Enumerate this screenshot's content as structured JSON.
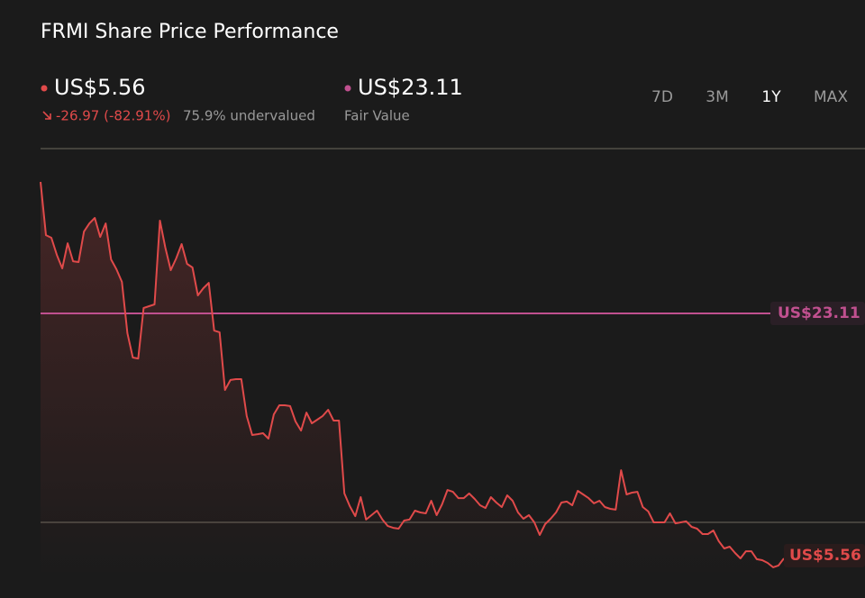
{
  "header": {
    "title": "FRMI Share Price Performance",
    "change": "-26.97 (-82.91%)",
    "valuation": "75.9% undervalued",
    "fair_value_caption": "Fair Value",
    "ranges": [
      "7D",
      "3M",
      "1Y",
      "MAX"
    ],
    "active_range": "1Y"
  },
  "chart_data": {
    "type": "line",
    "color": "#e04a4a",
    "values": [
      32.53,
      28.72,
      28.53,
      27.3,
      26.34,
      28.14,
      26.85,
      26.79,
      28.98,
      29.56,
      29.95,
      28.59,
      29.56,
      26.98,
      26.27,
      25.37,
      21.69,
      19.95,
      19.88,
      23.5,
      23.63,
      23.76,
      29.76,
      27.82,
      26.21,
      27.05,
      28.08,
      26.66,
      26.4,
      24.4,
      24.92,
      25.3,
      21.88,
      21.76,
      17.63,
      18.34,
      18.4,
      18.4,
      15.76,
      14.4,
      14.46,
      14.53,
      14.14,
      15.88,
      16.53,
      16.53,
      16.47,
      15.37,
      14.72,
      16.01,
      15.24,
      15.5,
      15.76,
      16.21,
      15.43,
      15.43,
      10.21,
      9.3,
      8.59,
      9.95,
      8.34,
      8.66,
      8.98,
      8.34,
      7.88,
      7.75,
      7.69,
      8.27,
      8.34,
      8.98,
      8.85,
      8.79,
      9.69,
      8.66,
      9.43,
      10.46,
      10.33,
      9.88,
      9.88,
      10.21,
      9.82,
      9.37,
      9.17,
      9.95,
      9.56,
      9.24,
      10.08,
      9.69,
      8.85,
      8.4,
      8.66,
      8.14,
      7.24,
      8.01,
      8.4,
      8.85,
      9.56,
      9.63,
      9.37,
      10.4,
      10.14,
      9.88,
      9.5,
      9.69,
      9.24,
      9.11,
      9.05,
      11.88,
      10.14,
      10.27,
      10.33,
      9.24,
      8.92,
      8.14,
      8.14,
      8.14,
      8.79,
      8.07,
      8.14,
      8.21,
      7.82,
      7.69,
      7.3,
      7.3,
      7.56,
      6.79,
      6.27,
      6.4,
      5.95,
      5.56,
      6.07,
      6.07,
      5.5,
      5.43,
      5.24,
      4.92,
      5.05,
      5.56
    ],
    "ylim": [
      4.27,
      34.92
    ],
    "fair_value": {
      "value": 23.11,
      "label": "US$23.11",
      "color": "#c0508f"
    },
    "last_price": {
      "value": 5.56,
      "label": "US$5.56"
    }
  }
}
